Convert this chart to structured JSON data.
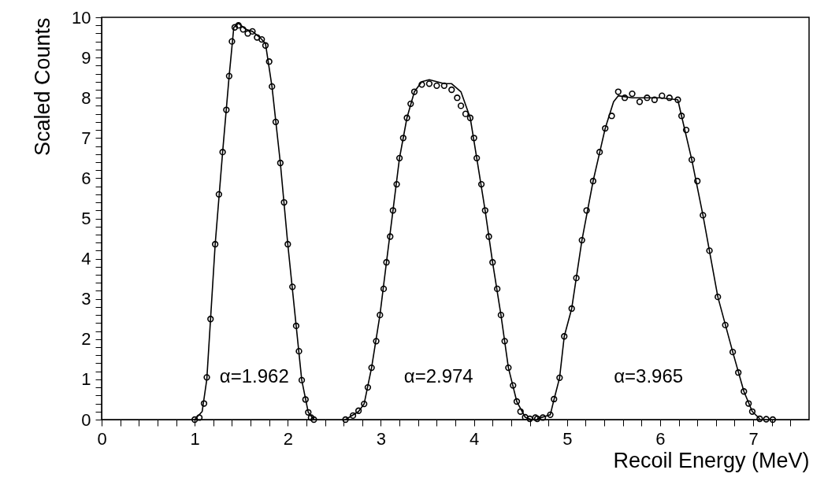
{
  "chart_data": {
    "type": "scatter",
    "xlabel": "Recoil Energy (MeV)",
    "ylabel": "Scaled Counts",
    "xlim": [
      0,
      7.6
    ],
    "ylim": [
      0,
      10
    ],
    "xticks": [
      0,
      {
        "value": 0.2,
        "label": null
      },
      {
        "value": 0.4,
        "label": null
      },
      {
        "value": 0.6,
        "label": null
      },
      {
        "value": 0.8,
        "label": null
      },
      1,
      {
        "value": 1.2,
        "label": null
      },
      {
        "value": 1.4,
        "label": null
      },
      {
        "value": 1.6,
        "label": null
      },
      {
        "value": 1.8,
        "label": null
      },
      2,
      {
        "value": 2.2,
        "label": null
      },
      {
        "value": 2.4,
        "label": null
      },
      {
        "value": 2.6,
        "label": null
      },
      {
        "value": 2.8,
        "label": null
      },
      3,
      {
        "value": 3.2,
        "label": null
      },
      {
        "value": 3.4,
        "label": null
      },
      {
        "value": 3.6,
        "label": null
      },
      {
        "value": 3.8,
        "label": null
      },
      4,
      {
        "value": 4.2,
        "label": null
      },
      {
        "value": 4.4,
        "label": null
      },
      {
        "value": 4.6,
        "label": null
      },
      {
        "value": 4.8,
        "label": null
      },
      5,
      {
        "value": 5.2,
        "label": null
      },
      {
        "value": 5.4,
        "label": null
      },
      {
        "value": 5.6,
        "label": null
      },
      {
        "value": 5.8,
        "label": null
      },
      6,
      {
        "value": 6.2,
        "label": null
      },
      {
        "value": 6.4,
        "label": null
      },
      {
        "value": 6.6,
        "label": null
      },
      {
        "value": 6.8,
        "label": null
      },
      7,
      {
        "value": 7.2,
        "label": null
      },
      {
        "value": 7.4,
        "label": null
      }
    ],
    "yticks": [
      0,
      {
        "value": 0.2,
        "label": null
      },
      {
        "value": 0.4,
        "label": null
      },
      {
        "value": 0.6,
        "label": null
      },
      {
        "value": 0.8,
        "label": null
      },
      1,
      {
        "value": 1.2,
        "label": null
      },
      {
        "value": 1.4,
        "label": null
      },
      {
        "value": 1.6,
        "label": null
      },
      {
        "value": 1.8,
        "label": null
      },
      2,
      {
        "value": 2.2,
        "label": null
      },
      {
        "value": 2.4,
        "label": null
      },
      {
        "value": 2.6,
        "label": null
      },
      {
        "value": 2.8,
        "label": null
      },
      3,
      {
        "value": 3.2,
        "label": null
      },
      {
        "value": 3.4,
        "label": null
      },
      {
        "value": 3.6,
        "label": null
      },
      {
        "value": 3.8,
        "label": null
      },
      4,
      {
        "value": 4.2,
        "label": null
      },
      {
        "value": 4.4,
        "label": null
      },
      {
        "value": 4.6,
        "label": null
      },
      {
        "value": 4.8,
        "label": null
      },
      5,
      {
        "value": 5.2,
        "label": null
      },
      {
        "value": 5.4,
        "label": null
      },
      {
        "value": 5.6,
        "label": null
      },
      {
        "value": 5.8,
        "label": null
      },
      6,
      {
        "value": 6.2,
        "label": null
      },
      {
        "value": 6.4,
        "label": null
      },
      {
        "value": 6.6,
        "label": null
      },
      {
        "value": 6.8,
        "label": null
      },
      7,
      {
        "value": 7.2,
        "label": null
      },
      {
        "value": 7.4,
        "label": null
      },
      {
        "value": 7.6,
        "label": null
      },
      {
        "value": 7.8,
        "label": null
      },
      8,
      {
        "value": 8.2,
        "label": null
      },
      {
        "value": 8.4,
        "label": null
      },
      {
        "value": 8.6,
        "label": null
      },
      {
        "value": 8.8,
        "label": null
      },
      9,
      {
        "value": 9.2,
        "label": null
      },
      {
        "value": 9.4,
        "label": null
      },
      {
        "value": 9.6,
        "label": null
      },
      {
        "value": 9.8,
        "label": null
      },
      10
    ],
    "series": [
      {
        "color": "#000000",
        "marker": "circle",
        "x": [
          1.0,
          1.05,
          1.1,
          1.13,
          1.17,
          1.22,
          1.26,
          1.3,
          1.34,
          1.37,
          1.4,
          1.43,
          1.47,
          1.52,
          1.57,
          1.62,
          1.67,
          1.72,
          1.76,
          1.8,
          1.83,
          1.87,
          1.92,
          1.96,
          2.0,
          2.05,
          2.09,
          2.12,
          2.15,
          2.19,
          2.22,
          2.25,
          2.28,
          2.62,
          2.7,
          2.76,
          2.82,
          2.86,
          2.9,
          2.95,
          2.99,
          3.03,
          3.06,
          3.1,
          3.13,
          3.17,
          3.2,
          3.24,
          3.28,
          3.32,
          3.36,
          3.44,
          3.52,
          3.6,
          3.68,
          3.76,
          3.82,
          3.86,
          3.91,
          3.96,
          4.0,
          4.03,
          4.08,
          4.12,
          4.16,
          4.2,
          4.25,
          4.29,
          4.33,
          4.37,
          4.42,
          4.46,
          4.5,
          4.55,
          4.6,
          4.66,
          4.68,
          4.74,
          4.82,
          4.86,
          4.92,
          4.97,
          5.05,
          5.1,
          5.16,
          5.21,
          5.28,
          5.35,
          5.41,
          5.48,
          5.55,
          5.62,
          5.7,
          5.78,
          5.86,
          5.94,
          6.02,
          6.1,
          6.19,
          6.23,
          6.28,
          6.34,
          6.4,
          6.46,
          6.53,
          6.62,
          6.7,
          6.78,
          6.84,
          6.9,
          6.95,
          6.99,
          7.07,
          7.14,
          7.21
        ],
        "values": [
          0,
          0.05,
          0.4,
          1.05,
          2.5,
          4.36,
          5.6,
          6.65,
          7.7,
          8.54,
          9.4,
          9.75,
          9.8,
          9.7,
          9.6,
          9.65,
          9.5,
          9.45,
          9.3,
          8.9,
          8.28,
          7.4,
          6.38,
          5.4,
          4.36,
          3.3,
          2.33,
          1.7,
          0.98,
          0.5,
          0.18,
          0.05,
          0,
          0,
          0.1,
          0.22,
          0.39,
          0.8,
          1.29,
          1.95,
          2.6,
          3.25,
          3.91,
          4.55,
          5.2,
          5.85,
          6.5,
          7.0,
          7.5,
          7.85,
          8.15,
          8.33,
          8.35,
          8.3,
          8.3,
          8.2,
          8.0,
          7.8,
          7.6,
          7.5,
          7.0,
          6.5,
          5.85,
          5.2,
          4.55,
          3.91,
          3.25,
          2.6,
          1.95,
          1.29,
          0.85,
          0.45,
          0.2,
          0.06,
          0.02,
          0.05,
          0.02,
          0.05,
          0.12,
          0.51,
          1.04,
          2.07,
          2.76,
          3.52,
          4.46,
          5.2,
          5.93,
          6.65,
          7.24,
          7.55,
          8.15,
          8.0,
          8.1,
          7.9,
          8.0,
          7.95,
          8.05,
          8.0,
          7.95,
          7.55,
          7.2,
          6.46,
          5.93,
          5.08,
          4.2,
          3.05,
          2.35,
          1.68,
          1.17,
          0.7,
          0.4,
          0.2,
          0.02,
          0.01,
          0
        ]
      },
      {
        "type": "line",
        "color": "#000000",
        "x": [
          1.0,
          1.08,
          1.13,
          1.22,
          1.3,
          1.37,
          1.42,
          1.47,
          1.55,
          1.62,
          1.7,
          1.76,
          1.83,
          1.92,
          2.0,
          2.09,
          2.15,
          2.22,
          2.28,
          2.45,
          2.62,
          2.76,
          2.82,
          2.9,
          2.99,
          3.06,
          3.13,
          3.2,
          3.28,
          3.36,
          3.44,
          3.52,
          3.6,
          3.68,
          3.76,
          3.86,
          3.96,
          4.03,
          4.12,
          4.2,
          4.29,
          4.37,
          4.46,
          4.55,
          4.62,
          4.65,
          4.68,
          4.82,
          4.86,
          4.92,
          4.97,
          5.05,
          5.16,
          5.28,
          5.41,
          5.5,
          5.55,
          5.7,
          5.85,
          6.0,
          6.19,
          6.23,
          6.34,
          6.46,
          6.62,
          6.78,
          6.9,
          6.99,
          7.07
        ],
        "values": [
          0,
          0.2,
          1.0,
          4.36,
          6.65,
          8.54,
          9.75,
          9.85,
          9.7,
          9.65,
          9.5,
          9.35,
          8.28,
          6.38,
          4.36,
          2.33,
          0.98,
          0.18,
          0,
          null,
          0,
          0.2,
          0.39,
          1.29,
          2.6,
          3.91,
          5.2,
          6.5,
          7.5,
          8.15,
          8.4,
          8.45,
          8.4,
          8.35,
          8.35,
          8.15,
          7.5,
          6.5,
          5.2,
          3.91,
          2.6,
          1.29,
          0.45,
          0.06,
          0,
          null,
          0.02,
          0.12,
          0.5,
          1.04,
          2.07,
          2.76,
          4.46,
          5.93,
          7.24,
          7.9,
          8.05,
          8.0,
          8.0,
          8.0,
          7.95,
          7.55,
          6.46,
          5.08,
          3.05,
          1.68,
          0.7,
          0.2,
          0.02
        ]
      }
    ],
    "annotations": [
      "α=1.962",
      "α=2.974",
      "α=3.965"
    ]
  }
}
